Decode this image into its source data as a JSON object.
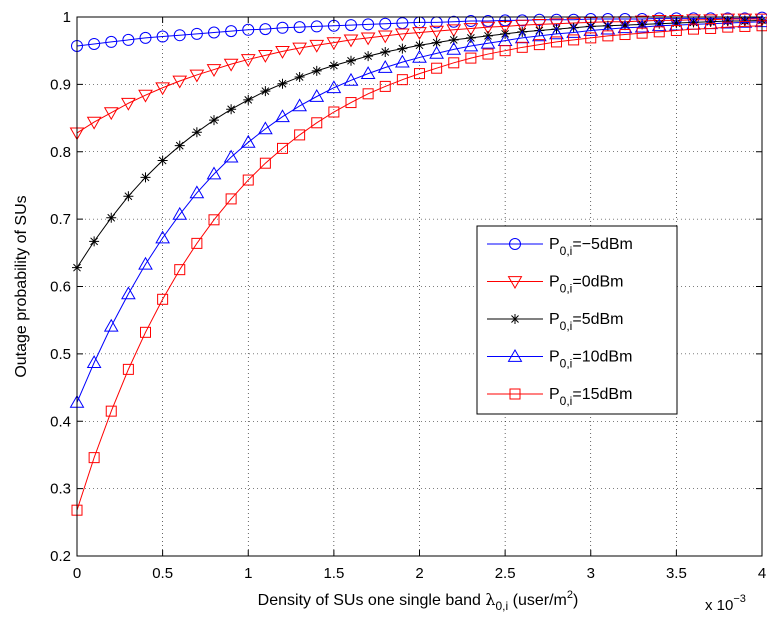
{
  "chart_data": {
    "type": "line",
    "title": "",
    "xlabel": {
      "prefix": "Density of SUs one single band ",
      "symbol": "λ",
      "symbol_sub": "0,i",
      "unit_open": " (user/m",
      "unit_sup": "2",
      "unit_close": ")"
    },
    "x_multiplier": {
      "text": "x 10",
      "exp": "−3"
    },
    "ylabel": "Outage probability of SUs",
    "xlim": [
      0,
      4
    ],
    "ylim": [
      0.2,
      1.0
    ],
    "x_ticks": [
      0,
      0.5,
      1,
      1.5,
      2,
      2.5,
      3,
      3.5,
      4
    ],
    "x_tick_labels": [
      "0",
      "0.5",
      "1",
      "1.5",
      "2",
      "2.5",
      "3",
      "3.5",
      "4"
    ],
    "y_ticks": [
      0.2,
      0.3,
      0.4,
      0.5,
      0.6,
      0.7,
      0.8,
      0.9,
      1.0
    ],
    "y_tick_labels": [
      "0.2",
      "0.3",
      "0.4",
      "0.5",
      "0.6",
      "0.7",
      "0.8",
      "0.9",
      "1"
    ],
    "grid": true,
    "legend_position": "right",
    "x": [
      0,
      0.1,
      0.2,
      0.3,
      0.4,
      0.5,
      0.6,
      0.7,
      0.8,
      0.9,
      1.0,
      1.1,
      1.2,
      1.3,
      1.4,
      1.5,
      1.6,
      1.7,
      1.8,
      1.9,
      2.0,
      2.1,
      2.2,
      2.3,
      2.4,
      2.5,
      2.6,
      2.7,
      2.8,
      2.9,
      3.0,
      3.1,
      3.2,
      3.3,
      3.4,
      3.5,
      3.6,
      3.7,
      3.8,
      3.9,
      4.0
    ],
    "series": [
      {
        "name": "P_{0,i}=−5dBm",
        "label_main": "P",
        "label_sub": "0,i",
        "label_rest": "=−5dBm",
        "color": "#0000ff",
        "marker": "circle",
        "values": [
          0.957,
          0.96,
          0.963,
          0.966,
          0.969,
          0.971,
          0.973,
          0.975,
          0.977,
          0.979,
          0.981,
          0.982,
          0.984,
          0.985,
          0.986,
          0.987,
          0.988,
          0.989,
          0.99,
          0.991,
          0.992,
          0.992,
          0.993,
          0.994,
          0.994,
          0.995,
          0.995,
          0.996,
          0.996,
          0.996,
          0.997,
          0.997,
          0.997,
          0.997,
          0.998,
          0.998,
          0.998,
          0.998,
          0.998,
          0.998,
          0.999
        ]
      },
      {
        "name": "P_{0,i}=0dBm",
        "label_main": "P",
        "label_sub": "0,i",
        "label_rest": "=0dBm",
        "color": "#ff0000",
        "marker": "triangle-down",
        "values": [
          0.828,
          0.844,
          0.858,
          0.872,
          0.884,
          0.895,
          0.905,
          0.914,
          0.922,
          0.93,
          0.937,
          0.943,
          0.949,
          0.954,
          0.958,
          0.962,
          0.966,
          0.969,
          0.972,
          0.975,
          0.977,
          0.979,
          0.981,
          0.983,
          0.985,
          0.986,
          0.988,
          0.989,
          0.99,
          0.991,
          0.992,
          0.993,
          0.993,
          0.994,
          0.995,
          0.995,
          0.996,
          0.996,
          0.997,
          0.997,
          0.997
        ]
      },
      {
        "name": "P_{0,i}=5dBm",
        "label_main": "P",
        "label_sub": "0,i",
        "label_rest": "=5dBm",
        "color": "#000000",
        "marker": "asterisk",
        "values": [
          0.628,
          0.667,
          0.702,
          0.734,
          0.762,
          0.787,
          0.809,
          0.829,
          0.847,
          0.863,
          0.877,
          0.89,
          0.901,
          0.911,
          0.92,
          0.928,
          0.935,
          0.942,
          0.948,
          0.953,
          0.958,
          0.962,
          0.966,
          0.969,
          0.972,
          0.975,
          0.978,
          0.98,
          0.982,
          0.984,
          0.986,
          0.987,
          0.988,
          0.989,
          0.99,
          0.991,
          0.992,
          0.993,
          0.994,
          0.994,
          0.995
        ]
      },
      {
        "name": "P_{0,i}=10dBm",
        "label_main": "P",
        "label_sub": "0,i",
        "label_rest": "=10dBm",
        "color": "#0000ff",
        "marker": "triangle-up",
        "values": [
          0.428,
          0.487,
          0.541,
          0.589,
          0.633,
          0.672,
          0.707,
          0.739,
          0.767,
          0.792,
          0.814,
          0.834,
          0.852,
          0.868,
          0.882,
          0.895,
          0.906,
          0.916,
          0.925,
          0.933,
          0.94,
          0.946,
          0.952,
          0.957,
          0.961,
          0.965,
          0.969,
          0.972,
          0.975,
          0.977,
          0.98,
          0.982,
          0.984,
          0.985,
          0.987,
          0.988,
          0.989,
          0.99,
          0.991,
          0.992,
          0.993
        ]
      },
      {
        "name": "P_{0,i}=15dBm",
        "label_main": "P",
        "label_sub": "0,i",
        "label_rest": "=15dBm",
        "color": "#ff0000",
        "marker": "square",
        "values": [
          0.268,
          0.346,
          0.415,
          0.477,
          0.532,
          0.581,
          0.625,
          0.664,
          0.699,
          0.73,
          0.758,
          0.783,
          0.805,
          0.825,
          0.843,
          0.859,
          0.873,
          0.886,
          0.897,
          0.907,
          0.916,
          0.924,
          0.932,
          0.939,
          0.945,
          0.95,
          0.955,
          0.959,
          0.963,
          0.966,
          0.969,
          0.972,
          0.974,
          0.976,
          0.978,
          0.98,
          0.982,
          0.983,
          0.985,
          0.986,
          0.987
        ]
      }
    ]
  }
}
